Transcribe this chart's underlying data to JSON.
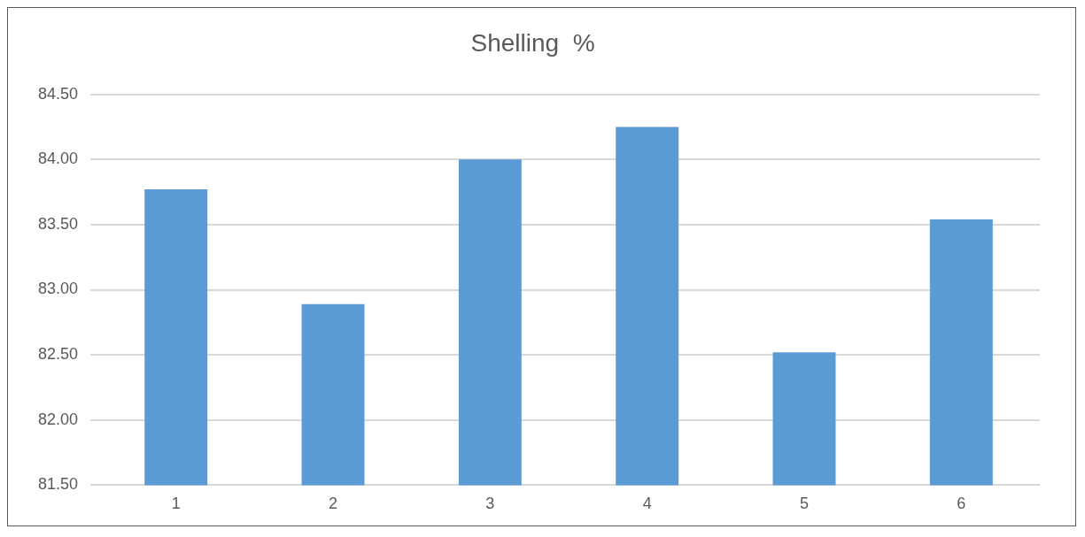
{
  "chart_data": {
    "type": "bar",
    "title": "Shelling  %",
    "categories": [
      "1",
      "2",
      "3",
      "4",
      "5",
      "6"
    ],
    "values": [
      83.77,
      82.89,
      84.0,
      84.25,
      82.52,
      83.54
    ],
    "color": "#5b9bd5",
    "ylim": [
      81.5,
      84.5
    ],
    "yticks": [
      {
        "value": 81.5,
        "label": "81.50"
      },
      {
        "value": 82,
        "label": "82.00"
      },
      {
        "value": 82.5,
        "label": "82.50"
      },
      {
        "value": 83,
        "label": "83.00"
      },
      {
        "value": 83.5,
        "label": "83.50"
      },
      {
        "value": 84,
        "label": "84.00"
      },
      {
        "value": 84.5,
        "label": "84.50"
      }
    ],
    "grid": "y",
    "legend": false
  }
}
